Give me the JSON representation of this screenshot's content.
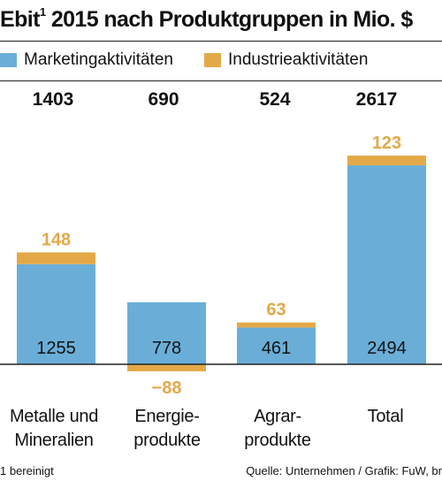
{
  "title": "Ebit",
  "title_sup": "1",
  "title_rest": " 2015 nach Produktgruppen in Mio. $",
  "colors": {
    "marketing": "#6aaed8",
    "industrie": "#e3a948"
  },
  "chart_data": {
    "type": "bar",
    "stacked": true,
    "categories": [
      {
        "line1": "Metalle und",
        "line2": "Mineralien"
      },
      {
        "line1": "Energie-",
        "line2": "produkte"
      },
      {
        "line1": "Agrar-",
        "line2": "produkte"
      },
      {
        "line1": "Total",
        "line2": ""
      }
    ],
    "totals": [
      "1403",
      "690",
      "524",
      "2617"
    ],
    "series": [
      {
        "name": "Marketingaktivitäten",
        "values": [
          1255,
          778,
          461,
          2494
        ],
        "labels": [
          "1255",
          "778",
          "461",
          "2494"
        ]
      },
      {
        "name": "Industrieaktivitäten",
        "values": [
          148,
          -88,
          63,
          123
        ],
        "labels": [
          "148",
          "−88",
          "63",
          "123"
        ]
      }
    ],
    "ylim": [
      -140,
      2700
    ]
  },
  "footnote": "1 bereinigt",
  "source": "Quelle: Unternehmen / Grafik: FuW, br"
}
